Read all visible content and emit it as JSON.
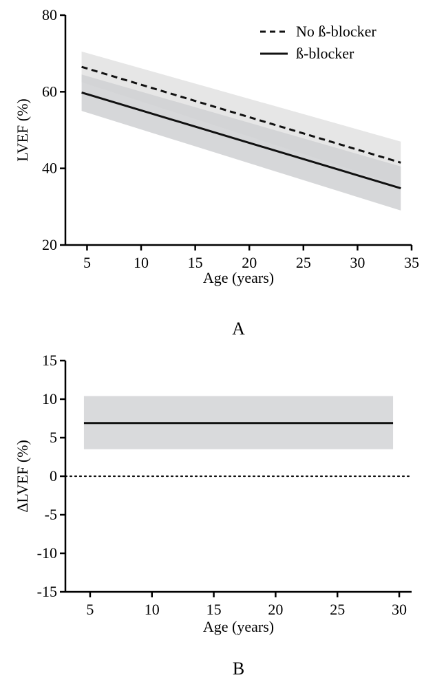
{
  "chart_data": [
    {
      "type": "line",
      "panel": "A",
      "xlabel": "Age (years)",
      "ylabel": "LVEF (%)",
      "xlim": [
        3,
        35
      ],
      "ylim": [
        20,
        80
      ],
      "xticks": [
        5,
        10,
        15,
        20,
        25,
        30,
        35
      ],
      "yticks": [
        20,
        40,
        60,
        80
      ],
      "legend_position": "top-right",
      "grid": false,
      "series": [
        {
          "name": "No ß-blocker",
          "style": "dashed",
          "color": "#111111",
          "band_color": "#e6e6e6",
          "x": [
            4.5,
            34
          ],
          "y": [
            66.5,
            41.5
          ],
          "ci_lower": [
            62.5,
            35.5
          ],
          "ci_upper": [
            70.5,
            47.0
          ]
        },
        {
          "name": "ß-blocker",
          "style": "solid",
          "color": "#111111",
          "band_color": "#cfd0d2",
          "x": [
            4.5,
            34
          ],
          "y": [
            59.8,
            34.8
          ],
          "ci_lower": [
            55.0,
            29.0
          ],
          "ci_upper": [
            64.5,
            40.5
          ]
        }
      ]
    },
    {
      "type": "line",
      "panel": "B",
      "xlabel": "Age (years)",
      "ylabel": "ΔLVEF (%)",
      "xlim": [
        3,
        31
      ],
      "ylim": [
        -15,
        15
      ],
      "xticks": [
        5,
        10,
        15,
        20,
        25,
        30
      ],
      "yticks": [
        -15,
        -10,
        -5,
        0,
        5,
        10,
        15
      ],
      "ytick_labels": [
        "-15",
        "-10",
        "-5",
        "0",
        "5",
        "10",
        "15"
      ],
      "grid": false,
      "series": [
        {
          "style": "solid",
          "color": "#111111",
          "band_color": "#d9dadc",
          "x": [
            4.5,
            29.5
          ],
          "y": [
            6.9,
            6.9
          ],
          "ci_lower": [
            3.5,
            3.5
          ],
          "ci_upper": [
            10.4,
            10.4
          ]
        }
      ],
      "reference_line": {
        "y": 0,
        "style": "dotted"
      }
    }
  ]
}
